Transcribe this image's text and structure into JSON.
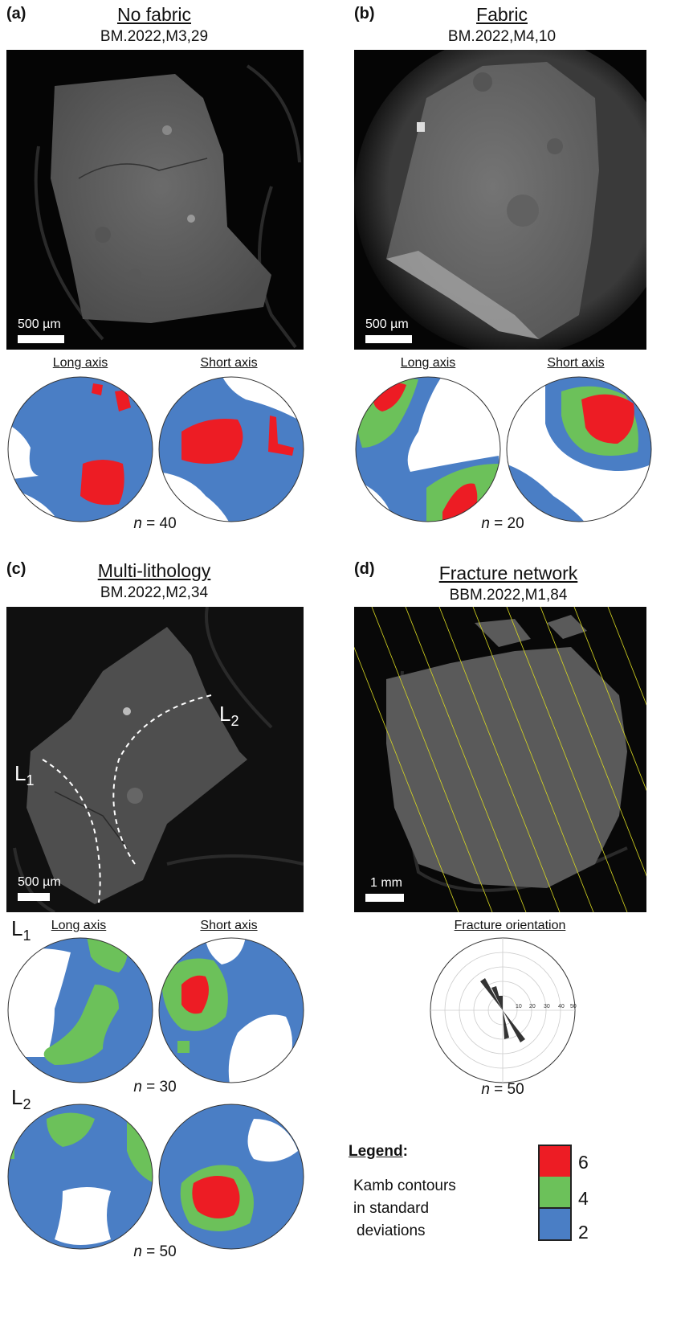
{
  "colors": {
    "red": "#ed1c24",
    "green": "#6cc15a",
    "blue": "#4a7ec5",
    "white": "#ffffff",
    "image_bg": "#050505"
  },
  "panel_a": {
    "letter": "(a)",
    "title": "No fabric",
    "specimen": "BM.2022,M3,29",
    "scale_label": "500 µm",
    "long_axis_label": "Long axis",
    "short_axis_label": "Short axis",
    "n_prefix": "n",
    "n_value": "= 40"
  },
  "panel_b": {
    "letter": "(b)",
    "title": "Fabric",
    "specimen": "BM.2022,M4,10",
    "scale_label": "500 µm",
    "long_axis_label": "Long axis",
    "short_axis_label": "Short axis",
    "n_prefix": "n",
    "n_value": "= 20"
  },
  "panel_c": {
    "letter": "(c)",
    "title": "Multi-lithology",
    "specimen": "BM.2022,M2,34",
    "scale_label": "500 µm",
    "l1_label": "L",
    "l1_sub": "1",
    "l2_label": "L",
    "l2_sub": "2",
    "long_axis_label": "Long axis",
    "short_axis_label": "Short axis",
    "n1_prefix": "n",
    "n1_value": "= 30",
    "n2_prefix": "n",
    "n2_value": "= 50"
  },
  "panel_d": {
    "letter": "(d)",
    "title": "Fracture network",
    "specimen": "BBM.2022,M1,84",
    "scale_label": "1 mm",
    "rose_label": "Fracture orientation",
    "rose_ticks": [
      "10",
      "20",
      "30",
      "40",
      "50"
    ],
    "n_prefix": "n",
    "n_value": "= 50"
  },
  "legend": {
    "title": "Legend",
    "colon": ":",
    "text_lines": [
      "Kamb contours",
      "in standard",
      "deviations"
    ],
    "levels": [
      "6",
      "4",
      "2"
    ]
  }
}
